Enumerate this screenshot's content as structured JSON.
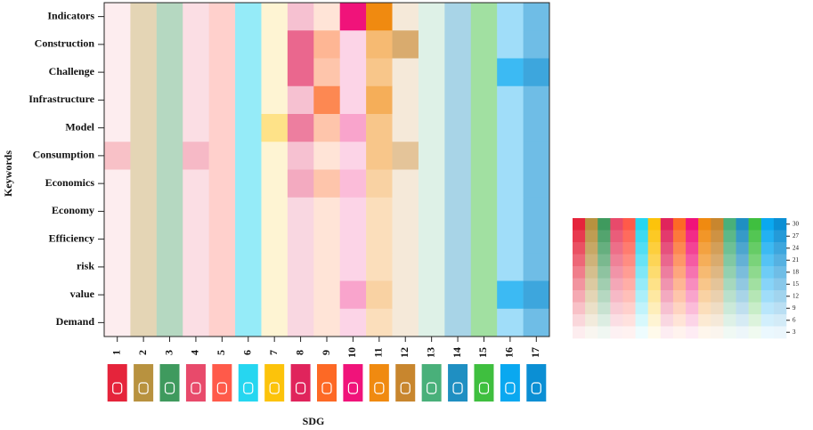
{
  "chart_data": {
    "type": "heatmap",
    "x_label": "SDG",
    "y_label": "Keywords",
    "categories": [
      "1",
      "2",
      "3",
      "4",
      "5",
      "6",
      "7",
      "8",
      "9",
      "10",
      "11",
      "12",
      "13",
      "14",
      "15",
      "16",
      "17"
    ],
    "rows": [
      "Indicators",
      "Construction",
      "Challenge",
      "Infrastructure",
      "Model",
      "Consumption",
      "Economics",
      "Economy",
      "Efficiency",
      "risk",
      "value",
      "Demand"
    ],
    "colors": [
      "#e5243b",
      "#b8923f",
      "#3f9a5e",
      "#e84a6b",
      "#ff5a4a",
      "#26d6f0",
      "#fcc30b",
      "#e0245c",
      "#fd6925",
      "#f0137a",
      "#f08a10",
      "#c8862e",
      "#49b07a",
      "#1f8fc2",
      "#3fbf3f",
      "#0aa8f0",
      "#0b8fd4"
    ],
    "values": [
      [
        3,
        12,
        12,
        6,
        9,
        15,
        6,
        9,
        6,
        30,
        30,
        6,
        6,
        12,
        15,
        12,
        18
      ],
      [
        3,
        12,
        12,
        6,
        9,
        15,
        6,
        21,
        15,
        6,
        18,
        21,
        6,
        12,
        15,
        12,
        18
      ],
      [
        3,
        12,
        12,
        6,
        9,
        15,
        6,
        21,
        12,
        6,
        15,
        6,
        6,
        12,
        15,
        24,
        24
      ],
      [
        3,
        12,
        12,
        6,
        9,
        15,
        6,
        9,
        24,
        6,
        21,
        6,
        6,
        12,
        15,
        12,
        18
      ],
      [
        3,
        12,
        12,
        6,
        9,
        15,
        15,
        18,
        12,
        12,
        15,
        6,
        6,
        12,
        15,
        12,
        18
      ],
      [
        9,
        12,
        12,
        12,
        9,
        15,
        6,
        9,
        6,
        6,
        15,
        15,
        6,
        12,
        15,
        12,
        18
      ],
      [
        3,
        12,
        12,
        6,
        9,
        15,
        6,
        12,
        12,
        9,
        12,
        6,
        6,
        12,
        15,
        12,
        18
      ],
      [
        3,
        12,
        12,
        6,
        9,
        15,
        6,
        6,
        6,
        6,
        9,
        6,
        6,
        12,
        15,
        12,
        18
      ],
      [
        3,
        12,
        12,
        6,
        9,
        15,
        6,
        6,
        6,
        6,
        9,
        6,
        6,
        12,
        15,
        12,
        18
      ],
      [
        3,
        12,
        12,
        6,
        9,
        15,
        6,
        6,
        6,
        6,
        9,
        6,
        6,
        12,
        15,
        12,
        18
      ],
      [
        3,
        12,
        12,
        6,
        9,
        15,
        6,
        6,
        6,
        12,
        12,
        6,
        6,
        12,
        15,
        24,
        24
      ],
      [
        3,
        12,
        12,
        6,
        9,
        15,
        6,
        6,
        6,
        6,
        9,
        6,
        6,
        12,
        15,
        12,
        18
      ]
    ],
    "zlim": [
      3,
      30
    ],
    "colorbar_ticks": [
      30,
      27,
      24,
      21,
      18,
      15,
      12,
      9,
      6,
      3
    ]
  }
}
